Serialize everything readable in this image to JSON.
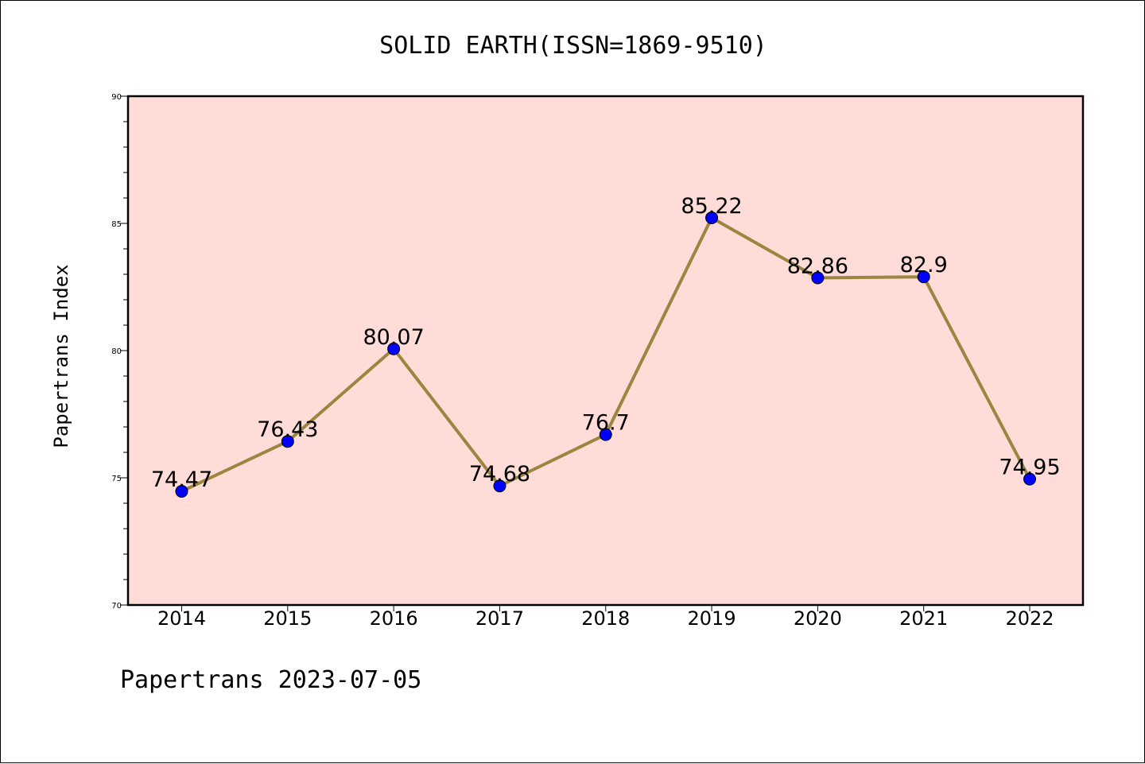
{
  "chart_data": {
    "type": "line",
    "title": "SOLID EARTH(ISSN=1869-9510)",
    "ylabel": "Papertrans Index",
    "xlabel": "",
    "categories": [
      "2014",
      "2015",
      "2016",
      "2017",
      "2018",
      "2019",
      "2020",
      "2021",
      "2022"
    ],
    "series": [
      {
        "values": [
          74.47,
          76.43,
          80.07,
          74.68,
          76.7,
          85.22,
          82.86,
          82.9,
          74.95
        ],
        "labels": [
          "74.47",
          "76.43",
          "80.07",
          "74.68",
          "76.7",
          "85.22",
          "82.86",
          "82.9",
          "74.95"
        ],
        "line_color": "#9c8540",
        "marker_color": "#0000ff"
      }
    ],
    "ylim": [
      70,
      90
    ],
    "yticks": [
      "70",
      "75",
      "80",
      "85",
      "90"
    ],
    "plot_background": "#ffdcd8",
    "grid": false,
    "footer": "Papertrans 2023-07-05"
  }
}
